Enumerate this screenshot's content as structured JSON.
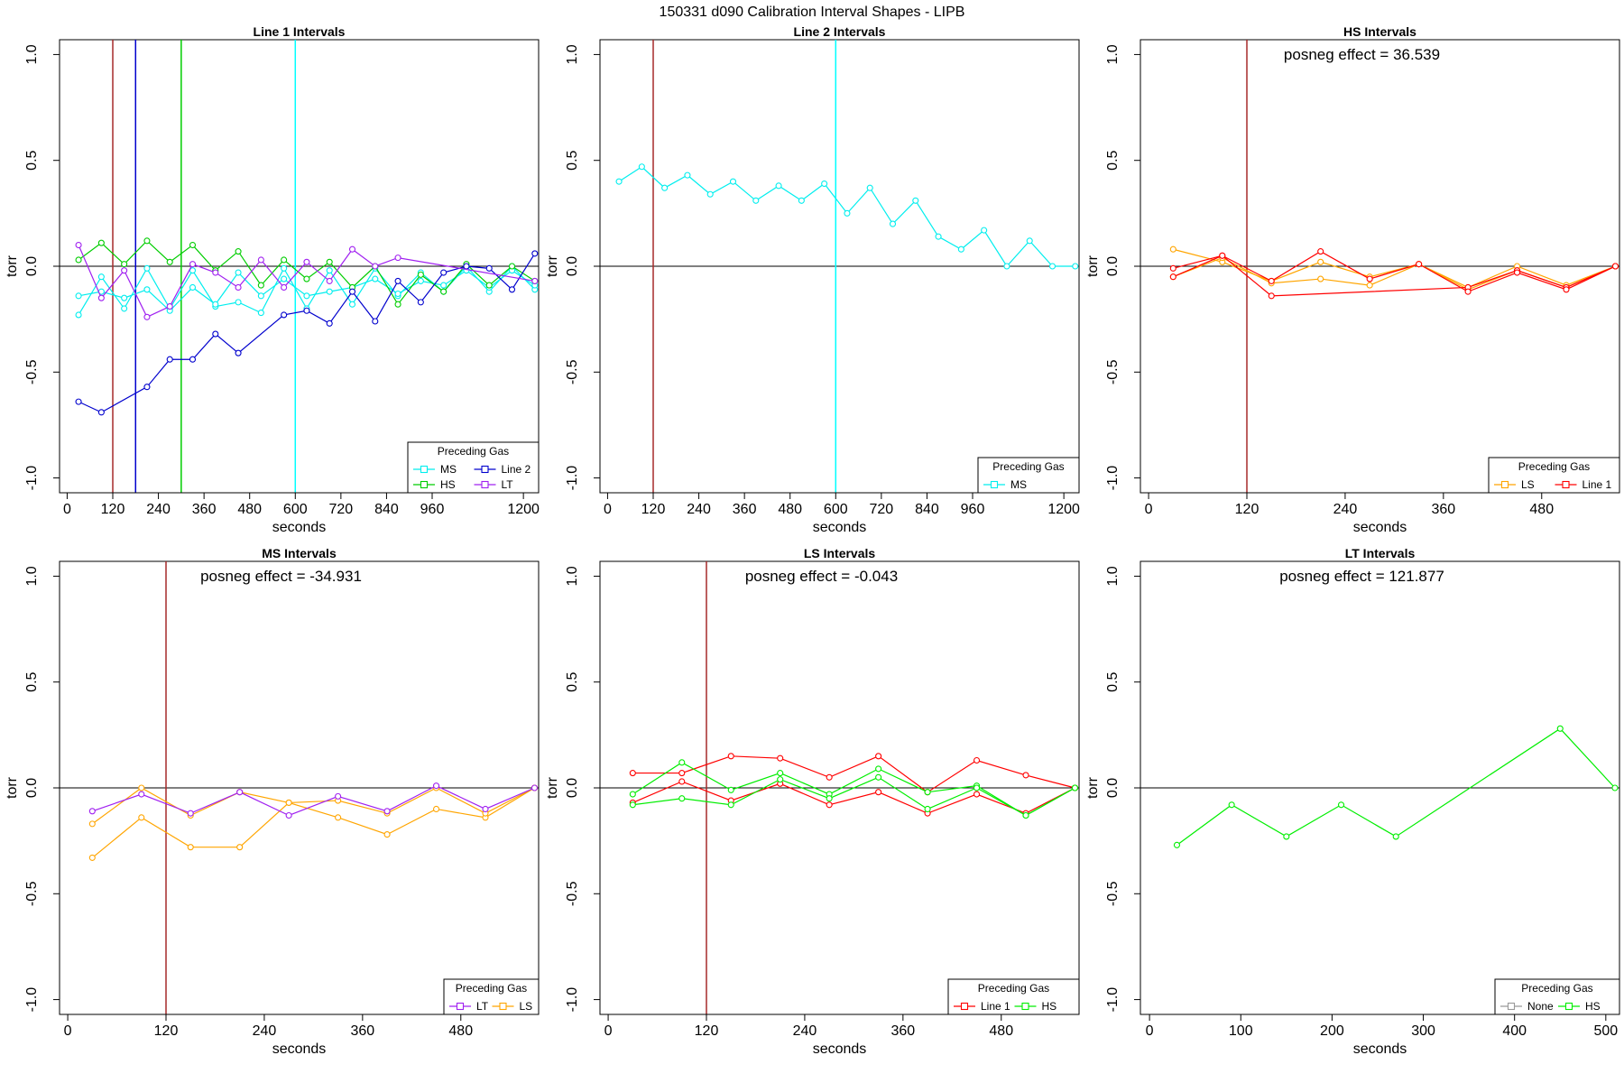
{
  "title": "150331   d090   Calibration Interval Shapes - LIPB",
  "chart_data": [
    {
      "type": "line",
      "title": "Line 1 Intervals",
      "xlabel": "seconds",
      "ylabel": "torr",
      "xlim": [
        -20,
        1240
      ],
      "ylim": [
        -1.07,
        1.07
      ],
      "xticks": [
        0,
        120,
        240,
        360,
        480,
        600,
        720,
        840,
        960,
        1200
      ],
      "yticks": [
        -1.0,
        -0.5,
        0.0,
        0.5,
        1.0
      ],
      "hlines": [
        0
      ],
      "vlines": [
        {
          "x": 120,
          "color": "#A52A2A"
        },
        {
          "x": 180,
          "color": "#0000CD"
        },
        {
          "x": 300,
          "color": "#00CD00"
        },
        {
          "x": 600,
          "color": "#00FFFF"
        }
      ],
      "annotation": "",
      "legend": {
        "title": "Preceding Gas",
        "position": "bottom-right",
        "columns": 2,
        "entries": [
          {
            "label": "MS",
            "color": "#00EEEE"
          },
          {
            "label": "Line 2",
            "color": "#0000CD"
          },
          {
            "label": "HS",
            "color": "#00CD00"
          },
          {
            "label": "LT",
            "color": "#A020F0"
          }
        ]
      },
      "series": [
        {
          "color": "#00EEEE",
          "x": [
            30,
            90,
            150,
            210,
            270,
            330,
            390,
            450,
            510,
            570,
            630,
            690,
            750,
            810,
            870,
            930,
            990,
            1050,
            1110,
            1170,
            1230
          ],
          "y": [
            -0.23,
            -0.05,
            -0.2,
            -0.01,
            -0.2,
            -0.02,
            -0.19,
            -0.17,
            -0.22,
            -0.01,
            -0.2,
            -0.02,
            -0.18,
            -0.01,
            -0.14,
            -0.03,
            -0.12,
            0.0,
            -0.12,
            0.0,
            -0.11
          ]
        },
        {
          "color": "#00EEEE",
          "x": [
            30,
            90,
            150,
            210,
            270,
            330,
            390,
            450,
            510,
            570,
            630,
            690,
            750,
            810,
            870,
            930,
            990,
            1050,
            1110,
            1170,
            1230
          ],
          "y": [
            -0.14,
            -0.12,
            -0.15,
            -0.11,
            -0.21,
            -0.1,
            -0.18,
            -0.03,
            -0.14,
            -0.06,
            -0.14,
            -0.12,
            -0.1,
            -0.06,
            -0.13,
            -0.07,
            -0.09,
            -0.02,
            -0.1,
            -0.02,
            -0.09
          ]
        },
        {
          "color": "#00CD00",
          "x": [
            30,
            90,
            150,
            210,
            270,
            330,
            390,
            450,
            510,
            570,
            630,
            690,
            750,
            810,
            870,
            930,
            990,
            1050,
            1110,
            1170,
            1230
          ],
          "y": [
            0.03,
            0.11,
            0.01,
            0.12,
            0.02,
            0.1,
            -0.02,
            0.07,
            -0.09,
            0.03,
            -0.06,
            0.02,
            -0.1,
            0.0,
            -0.18,
            -0.04,
            -0.12,
            0.01,
            -0.09,
            0.0,
            -0.07
          ]
        },
        {
          "color": "#0000CD",
          "x": [
            30,
            90,
            210,
            270,
            330,
            390,
            450,
            570,
            630,
            690,
            750,
            810,
            870,
            930,
            990,
            1050,
            1110,
            1170,
            1230
          ],
          "y": [
            -0.64,
            -0.69,
            -0.57,
            -0.44,
            -0.44,
            -0.32,
            -0.41,
            -0.23,
            -0.21,
            -0.27,
            -0.12,
            -0.26,
            -0.07,
            -0.17,
            -0.03,
            0.0,
            -0.01,
            -0.11,
            0.06
          ]
        },
        {
          "color": "#A020F0",
          "x": [
            30,
            90,
            150,
            210,
            270,
            330,
            390,
            450,
            510,
            570,
            630,
            690,
            750,
            810,
            870,
            1230
          ],
          "y": [
            0.1,
            -0.15,
            -0.02,
            -0.24,
            -0.19,
            0.01,
            -0.03,
            -0.1,
            0.03,
            -0.1,
            0.02,
            -0.07,
            0.08,
            0.0,
            0.04,
            -0.07
          ]
        }
      ]
    },
    {
      "type": "line",
      "title": "Line 2 Intervals",
      "xlabel": "seconds",
      "ylabel": "torr",
      "xlim": [
        -20,
        1240
      ],
      "ylim": [
        -1.07,
        1.07
      ],
      "xticks": [
        0,
        120,
        240,
        360,
        480,
        600,
        720,
        840,
        960,
        1200
      ],
      "yticks": [
        -1.0,
        -0.5,
        0.0,
        0.5,
        1.0
      ],
      "hlines": [
        0
      ],
      "vlines": [
        {
          "x": 120,
          "color": "#A52A2A"
        },
        {
          "x": 600,
          "color": "#00FFFF"
        }
      ],
      "annotation": "",
      "legend": {
        "title": "Preceding Gas",
        "position": "bottom-right",
        "columns": 1,
        "entries": [
          {
            "label": "MS",
            "color": "#00EEEE"
          }
        ]
      },
      "series": [
        {
          "color": "#00EEEE",
          "x": [
            30,
            90,
            150,
            210,
            270,
            330,
            390,
            450,
            510,
            570,
            630,
            690,
            750,
            810,
            870,
            930,
            990,
            1050,
            1110,
            1170,
            1230
          ],
          "y": [
            0.4,
            0.47,
            0.37,
            0.43,
            0.34,
            0.4,
            0.31,
            0.38,
            0.31,
            0.39,
            0.25,
            0.37,
            0.2,
            0.31,
            0.14,
            0.08,
            0.17,
            0.0,
            0.12,
            0.0,
            0.0
          ]
        }
      ]
    },
    {
      "type": "line",
      "title": "HS Intervals",
      "xlabel": "seconds",
      "ylabel": "torr",
      "xlim": [
        -10,
        575
      ],
      "ylim": [
        -1.07,
        1.07
      ],
      "xticks": [
        0,
        120,
        240,
        360,
        480
      ],
      "yticks": [
        -1.0,
        -0.5,
        0.0,
        0.5,
        1.0
      ],
      "hlines": [
        0
      ],
      "vlines": [
        {
          "x": 120,
          "color": "#A52A2A"
        }
      ],
      "annotation": "posneg effect = 36.539",
      "legend": {
        "title": "Preceding Gas",
        "position": "bottom-right",
        "columns": 2,
        "entries": [
          {
            "label": "LS",
            "color": "#FFA500"
          },
          {
            "label": "Line 1",
            "color": "#FF0000"
          }
        ]
      },
      "series": [
        {
          "color": "#FFA500",
          "x": [
            30,
            90,
            150,
            210,
            270,
            330,
            390,
            450,
            510,
            570
          ],
          "y": [
            0.08,
            0.02,
            -0.07,
            0.02,
            -0.05,
            0.01,
            -0.1,
            0.0,
            -0.09,
            0.0
          ]
        },
        {
          "color": "#FFA500",
          "x": [
            30,
            90,
            150,
            210,
            270,
            330,
            390,
            450,
            510,
            570
          ],
          "y": [
            -0.05,
            0.04,
            -0.08,
            -0.06,
            -0.09,
            0.01,
            -0.11,
            -0.02,
            -0.1,
            0.0
          ]
        },
        {
          "color": "#FF0000",
          "x": [
            30,
            90,
            150,
            390,
            450,
            510,
            570
          ],
          "y": [
            -0.01,
            0.05,
            -0.14,
            -0.1,
            -0.02,
            -0.1,
            0.0
          ]
        },
        {
          "color": "#FF0000",
          "x": [
            30,
            90,
            150,
            210,
            270,
            330,
            390,
            450,
            510,
            570
          ],
          "y": [
            -0.05,
            0.05,
            -0.07,
            0.07,
            -0.06,
            0.01,
            -0.12,
            -0.03,
            -0.11,
            0.0
          ]
        }
      ]
    },
    {
      "type": "line",
      "title": "MS Intervals",
      "xlabel": "seconds",
      "ylabel": "torr",
      "xlim": [
        -10,
        575
      ],
      "ylim": [
        -1.07,
        1.07
      ],
      "xticks": [
        0,
        120,
        240,
        360,
        480
      ],
      "yticks": [
        -1.0,
        -0.5,
        0.0,
        0.5,
        1.0
      ],
      "hlines": [
        0
      ],
      "vlines": [
        {
          "x": 120,
          "color": "#A52A2A"
        }
      ],
      "annotation": "posneg effect = -34.931",
      "legend": {
        "title": "Preceding Gas",
        "position": "bottom-right",
        "columns": 2,
        "entries": [
          {
            "label": "LT",
            "color": "#A020F0"
          },
          {
            "label": "LS",
            "color": "#FFA500"
          }
        ]
      },
      "series": [
        {
          "color": "#FFA500",
          "x": [
            30,
            90,
            150,
            210,
            270,
            330,
            390,
            450,
            510,
            570
          ],
          "y": [
            -0.33,
            -0.14,
            -0.28,
            -0.28,
            -0.07,
            -0.14,
            -0.22,
            -0.1,
            -0.14,
            0.0
          ]
        },
        {
          "color": "#FFA500",
          "x": [
            30,
            90,
            150,
            210,
            270,
            330,
            390,
            450,
            510,
            570
          ],
          "y": [
            -0.17,
            0.0,
            -0.13,
            -0.02,
            -0.07,
            -0.06,
            -0.12,
            0.0,
            -0.12,
            0.0
          ]
        },
        {
          "color": "#A020F0",
          "x": [
            30,
            90,
            150,
            210,
            270,
            330,
            390,
            450,
            510,
            570
          ],
          "y": [
            -0.11,
            -0.03,
            -0.12,
            -0.02,
            -0.13,
            -0.04,
            -0.11,
            0.01,
            -0.1,
            0.0
          ]
        }
      ]
    },
    {
      "type": "line",
      "title": "LS Intervals",
      "xlabel": "seconds",
      "ylabel": "torr",
      "xlim": [
        -10,
        575
      ],
      "ylim": [
        -1.07,
        1.07
      ],
      "xticks": [
        0,
        120,
        240,
        360,
        480
      ],
      "yticks": [
        -1.0,
        -0.5,
        0.0,
        0.5,
        1.0
      ],
      "hlines": [
        0
      ],
      "vlines": [
        {
          "x": 120,
          "color": "#A52A2A"
        }
      ],
      "annotation": "posneg effect = -0.043",
      "legend": {
        "title": "Preceding Gas",
        "position": "bottom-right",
        "columns": 2,
        "entries": [
          {
            "label": "Line 1",
            "color": "#FF0000"
          },
          {
            "label": "HS",
            "color": "#00EE00"
          }
        ]
      },
      "series": [
        {
          "color": "#FF0000",
          "x": [
            30,
            90,
            150,
            210,
            270,
            330,
            390,
            450,
            510,
            570
          ],
          "y": [
            0.07,
            0.07,
            0.15,
            0.14,
            0.05,
            0.15,
            -0.02,
            0.13,
            0.06,
            0.0
          ]
        },
        {
          "color": "#FF0000",
          "x": [
            30,
            90,
            150,
            210,
            270,
            330,
            390,
            450,
            510,
            570
          ],
          "y": [
            -0.07,
            0.03,
            -0.06,
            0.02,
            -0.08,
            -0.02,
            -0.12,
            -0.03,
            -0.12,
            0.0
          ]
        },
        {
          "color": "#00EE00",
          "x": [
            30,
            90,
            150,
            210,
            270,
            330,
            390,
            450,
            510,
            570
          ],
          "y": [
            -0.03,
            0.12,
            -0.01,
            0.07,
            -0.03,
            0.09,
            -0.02,
            0.01,
            -0.13,
            0.0
          ]
        },
        {
          "color": "#00EE00",
          "x": [
            30,
            90,
            150,
            210,
            270,
            330,
            390,
            450,
            510,
            570
          ],
          "y": [
            -0.08,
            -0.05,
            -0.08,
            0.04,
            -0.05,
            0.05,
            -0.1,
            0.0,
            -0.13,
            0.0
          ]
        }
      ]
    },
    {
      "type": "line",
      "title": "LT Intervals",
      "xlabel": "seconds",
      "ylabel": "torr",
      "xlim": [
        -10,
        515
      ],
      "ylim": [
        -1.07,
        1.07
      ],
      "xticks": [
        0,
        100,
        200,
        300,
        400,
        500
      ],
      "yticks": [
        -1.0,
        -0.5,
        0.0,
        0.5,
        1.0
      ],
      "hlines": [
        0
      ],
      "vlines": [],
      "annotation": "posneg effect = 121.877",
      "legend": {
        "title": "Preceding Gas",
        "position": "bottom-right",
        "columns": 2,
        "entries": [
          {
            "label": "None",
            "color": "#999999"
          },
          {
            "label": "HS",
            "color": "#00EE00"
          }
        ]
      },
      "series": [
        {
          "color": "#00EE00",
          "x": [
            30,
            90,
            150,
            210,
            270,
            450,
            510
          ],
          "y": [
            -0.27,
            -0.08,
            -0.23,
            -0.08,
            -0.23,
            0.28,
            0.0
          ]
        }
      ]
    }
  ]
}
